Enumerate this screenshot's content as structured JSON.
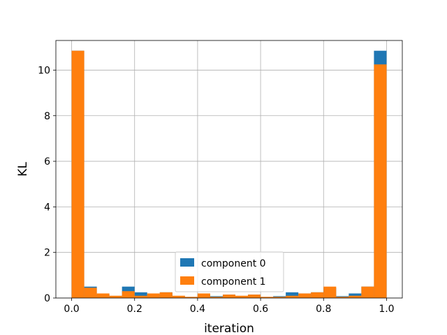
{
  "chart_data": {
    "type": "bar",
    "subtype": "overlaid-histogram",
    "title": "",
    "xlabel": "iteration",
    "ylabel": "KL",
    "xlim": [
      -0.05,
      1.05
    ],
    "ylim": [
      0,
      11.3
    ],
    "xticks": [
      "0.0",
      "0.2",
      "0.4",
      "0.6",
      "0.8",
      "1.0"
    ],
    "xtick_values": [
      0.0,
      0.2,
      0.4,
      0.6,
      0.8,
      1.0
    ],
    "yticks": [
      "0",
      "2",
      "4",
      "6",
      "8",
      "10"
    ],
    "ytick_values": [
      0,
      2,
      4,
      6,
      8,
      10
    ],
    "grid": true,
    "legend_position": "lower center",
    "bin_edges": [
      0.0,
      0.04,
      0.08,
      0.12,
      0.16,
      0.2,
      0.24,
      0.28,
      0.32,
      0.36,
      0.4,
      0.44,
      0.48,
      0.52,
      0.56,
      0.6,
      0.64,
      0.68,
      0.72,
      0.76,
      0.8,
      0.84,
      0.88,
      0.92,
      0.96,
      1.0
    ],
    "series": [
      {
        "name": "component 0",
        "color": "#1f77b4",
        "values": [
          10.85,
          0.5,
          0.15,
          0.08,
          0.5,
          0.25,
          0.15,
          0.25,
          0.08,
          0.05,
          0.15,
          0.08,
          0.15,
          0.08,
          0.15,
          0.05,
          0.08,
          0.25,
          0.2,
          0.25,
          0.45,
          0.08,
          0.2,
          0.5,
          10.85
        ]
      },
      {
        "name": "component 1",
        "color": "#ff7f0e",
        "values": [
          10.85,
          0.45,
          0.2,
          0.1,
          0.3,
          0.1,
          0.2,
          0.25,
          0.1,
          0.05,
          0.2,
          0.05,
          0.15,
          0.1,
          0.15,
          0.05,
          0.05,
          0.1,
          0.2,
          0.25,
          0.5,
          0.05,
          0.1,
          0.5,
          10.25
        ]
      }
    ]
  }
}
